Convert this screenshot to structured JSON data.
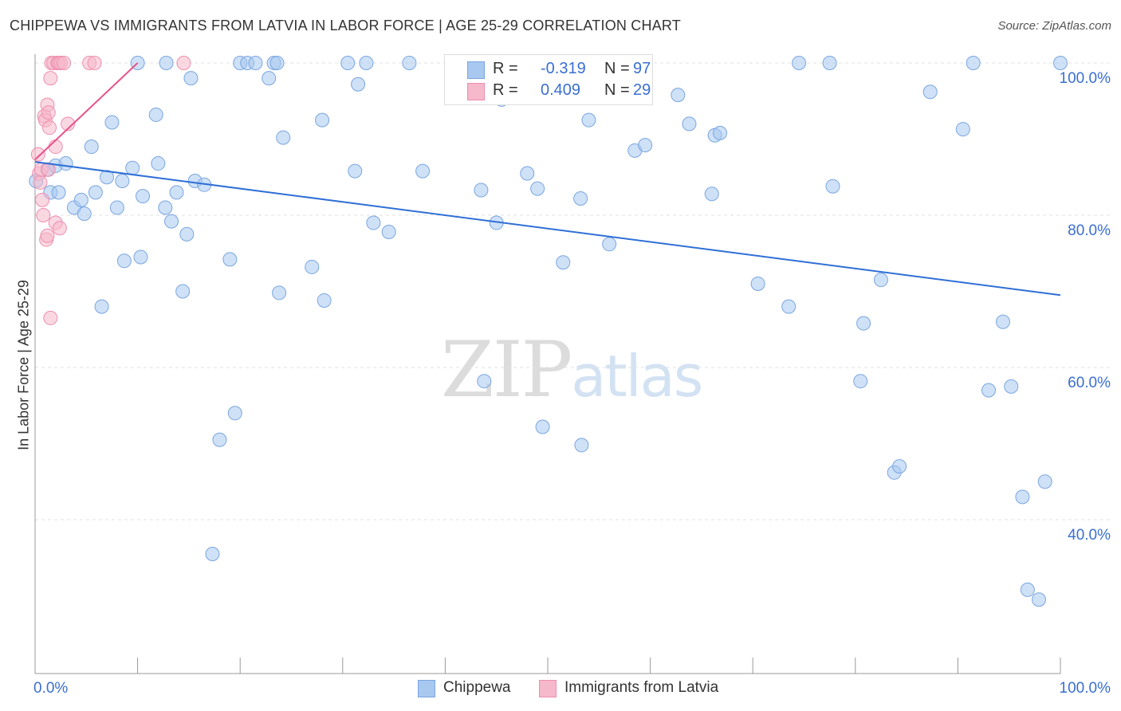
{
  "header": {
    "title": "CHIPPEWA VS IMMIGRANTS FROM LATVIA IN LABOR FORCE | AGE 25-29 CORRELATION CHART",
    "source": "Source: ZipAtlas.com"
  },
  "watermark": {
    "zip": "ZIP",
    "atlas": "atlas"
  },
  "stats": {
    "rows": [
      {
        "r_label": "R =",
        "r_value": "-0.319",
        "n_label": "N =",
        "n_value": "97",
        "color": "#a8c8f0",
        "border": "#7aa6e0"
      },
      {
        "r_label": "R =",
        "r_value": "0.409",
        "n_label": "N =",
        "n_value": "29",
        "color": "#f6b8cb",
        "border": "#ee8eae"
      }
    ]
  },
  "legend": {
    "items": [
      {
        "label": "Chippewa",
        "color": "#a8c8f0",
        "border": "#7aa6e0"
      },
      {
        "label": "Immigrants from Latvia",
        "color": "#f6b8cb",
        "border": "#ee8eae"
      }
    ]
  },
  "chart_data": {
    "type": "scatter",
    "title": "CHIPPEWA VS IMMIGRANTS FROM LATVIA IN LABOR FORCE | AGE 25-29 CORRELATION CHART",
    "xlabel": "",
    "ylabel": "In Labor Force | Age 25-29",
    "xlim": [
      0,
      100
    ],
    "ylim": [
      20,
      101.5
    ],
    "x_tick_labels": [
      {
        "value": 0,
        "label": "0.0%"
      },
      {
        "value": 100,
        "label": "100.0%"
      }
    ],
    "y_tick_labels": [
      {
        "value": 40,
        "label": "40.0%"
      },
      {
        "value": 60,
        "label": "60.0%"
      },
      {
        "value": 80,
        "label": "80.0%"
      },
      {
        "value": 100,
        "label": "100.0%"
      }
    ],
    "grid": true,
    "legend_position": "bottom",
    "series": [
      {
        "name": "Chippewa",
        "color": "#a8c8f0",
        "edge": "#7aa6e0",
        "trend": {
          "x": [
            0,
            100
          ],
          "y": [
            87.0,
            69.5
          ],
          "color": "#2f6fd6"
        },
        "points": [
          [
            0.1,
            84.5
          ],
          [
            1.2,
            86.0
          ],
          [
            1.5,
            83.0
          ],
          [
            2.0,
            86.5
          ],
          [
            2.3,
            83.0
          ],
          [
            3.0,
            86.8
          ],
          [
            3.8,
            81.0
          ],
          [
            4.5,
            82.0
          ],
          [
            4.8,
            80.2
          ],
          [
            5.5,
            89.0
          ],
          [
            5.9,
            83.0
          ],
          [
            6.5,
            68.0
          ],
          [
            7.0,
            85.0
          ],
          [
            7.5,
            92.2
          ],
          [
            8.0,
            81.0
          ],
          [
            8.5,
            84.5
          ],
          [
            8.7,
            74.0
          ],
          [
            9.5,
            86.2
          ],
          [
            10.0,
            100.0
          ],
          [
            10.3,
            74.5
          ],
          [
            10.5,
            82.5
          ],
          [
            11.8,
            93.2
          ],
          [
            12.0,
            86.8
          ],
          [
            12.7,
            81.0
          ],
          [
            12.8,
            100.0
          ],
          [
            13.3,
            79.2
          ],
          [
            13.8,
            83.0
          ],
          [
            14.4,
            70.0
          ],
          [
            14.8,
            77.5
          ],
          [
            15.2,
            98.0
          ],
          [
            15.6,
            84.5
          ],
          [
            16.5,
            84.0
          ],
          [
            17.3,
            35.5
          ],
          [
            18.0,
            50.5
          ],
          [
            19.0,
            74.2
          ],
          [
            19.5,
            54.0
          ],
          [
            20.0,
            100.0
          ],
          [
            20.7,
            100.0
          ],
          [
            21.5,
            100.0
          ],
          [
            22.8,
            98.0
          ],
          [
            23.3,
            100.0
          ],
          [
            23.6,
            100.0
          ],
          [
            23.8,
            69.8
          ],
          [
            24.2,
            90.2
          ],
          [
            27.0,
            73.2
          ],
          [
            28.0,
            92.5
          ],
          [
            28.2,
            68.8
          ],
          [
            30.5,
            100.0
          ],
          [
            31.2,
            85.8
          ],
          [
            31.5,
            97.2
          ],
          [
            32.3,
            100.0
          ],
          [
            33.0,
            79.0
          ],
          [
            34.5,
            77.8
          ],
          [
            36.5,
            100.0
          ],
          [
            37.8,
            85.8
          ],
          [
            43.5,
            83.3
          ],
          [
            43.8,
            58.2
          ],
          [
            45.0,
            79.0
          ],
          [
            45.5,
            95.2
          ],
          [
            48.0,
            85.5
          ],
          [
            49.0,
            83.5
          ],
          [
            49.5,
            52.2
          ],
          [
            50.0,
            100.0
          ],
          [
            51.5,
            73.8
          ],
          [
            53.2,
            82.2
          ],
          [
            53.3,
            49.8
          ],
          [
            54.0,
            92.5
          ],
          [
            56.0,
            76.2
          ],
          [
            58.5,
            88.5
          ],
          [
            59.5,
            89.2
          ],
          [
            62.7,
            95.8
          ],
          [
            63.8,
            92.0
          ],
          [
            66.0,
            82.8
          ],
          [
            66.3,
            90.5
          ],
          [
            66.8,
            90.8
          ],
          [
            70.5,
            71.0
          ],
          [
            73.5,
            68.0
          ],
          [
            74.5,
            100.0
          ],
          [
            77.5,
            100.0
          ],
          [
            77.8,
            83.8
          ],
          [
            80.5,
            58.2
          ],
          [
            80.8,
            65.8
          ],
          [
            82.5,
            71.5
          ],
          [
            83.8,
            46.2
          ],
          [
            84.3,
            47.0
          ],
          [
            87.3,
            96.2
          ],
          [
            90.5,
            91.3
          ],
          [
            91.5,
            100.0
          ],
          [
            93.0,
            57.0
          ],
          [
            94.4,
            66.0
          ],
          [
            95.2,
            57.5
          ],
          [
            96.3,
            43.0
          ],
          [
            96.8,
            30.8
          ],
          [
            97.9,
            29.5
          ],
          [
            98.5,
            45.0
          ],
          [
            100.0,
            100.0
          ],
          [
            44.7,
            99.5
          ]
        ]
      },
      {
        "name": "Immigrants from Latvia",
        "color": "#f6b8cb",
        "edge": "#ee8eae",
        "trend": {
          "x": [
            0,
            10
          ],
          "y": [
            87.3,
            100.0
          ],
          "color": "#e8528a"
        },
        "points": [
          [
            0.3,
            88.0
          ],
          [
            0.4,
            85.5
          ],
          [
            0.5,
            84.3
          ],
          [
            0.6,
            86.0
          ],
          [
            0.7,
            82.0
          ],
          [
            0.8,
            80.0
          ],
          [
            0.9,
            93.0
          ],
          [
            1.0,
            92.5
          ],
          [
            1.1,
            76.8
          ],
          [
            1.2,
            77.3
          ],
          [
            1.2,
            94.5
          ],
          [
            1.3,
            93.5
          ],
          [
            1.3,
            86.0
          ],
          [
            1.4,
            91.5
          ],
          [
            1.5,
            98.0
          ],
          [
            1.5,
            66.5
          ],
          [
            1.6,
            100.0
          ],
          [
            1.8,
            100.0
          ],
          [
            2.0,
            79.0
          ],
          [
            2.2,
            100.0
          ],
          [
            2.0,
            89.0
          ],
          [
            2.3,
            100.0
          ],
          [
            2.4,
            78.3
          ],
          [
            2.5,
            100.0
          ],
          [
            2.8,
            100.0
          ],
          [
            3.2,
            92.0
          ],
          [
            5.3,
            100.0
          ],
          [
            5.8,
            100.0
          ],
          [
            14.5,
            100.0
          ]
        ]
      }
    ]
  }
}
